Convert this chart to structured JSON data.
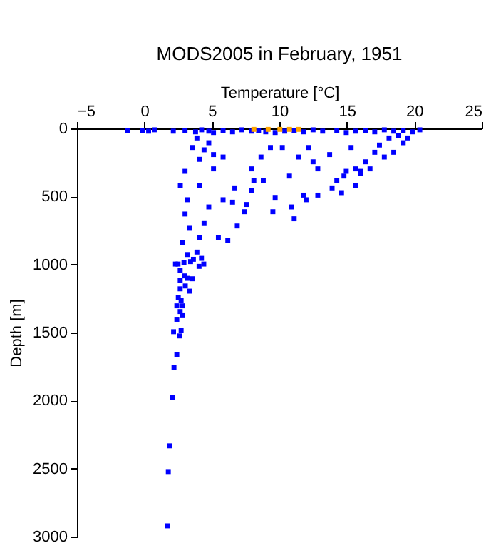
{
  "chart_data": {
    "type": "scatter",
    "title": "MODS2005 in February, 1951",
    "xlabel": "Temperature [°C]",
    "ylabel": "Depth [m]",
    "xlim": [
      -5,
      25
    ],
    "xticks": [
      -5,
      0,
      5,
      10,
      15,
      20,
      25
    ],
    "ylim": [
      3000,
      0
    ],
    "yticks": [
      0,
      500,
      1000,
      1500,
      2000,
      2500,
      3000
    ],
    "grid": false,
    "marker": "square",
    "series": [
      {
        "color": "#0000ff",
        "x": [
          -1.27,
          -0.15,
          0.31,
          0.73,
          2.14,
          3.01,
          3.79,
          4.24,
          4.77,
          5.12,
          5.83,
          6.53,
          7.23,
          7.94,
          8.46,
          8.99,
          9.69,
          10.4,
          11.1,
          11.8,
          12.5,
          13.21,
          14.26,
          14.96,
          15.67,
          16.37,
          17.07,
          17.78,
          18.48,
          19.18,
          19.89,
          20.41,
          3.89,
          4.77,
          4.42,
          5.12,
          3.54,
          5.83,
          4.07,
          3.01,
          2.66,
          3.19,
          3.01,
          3.37,
          2.84,
          3.19,
          2.49,
          4.07,
          5.12,
          4.77,
          4.42,
          4.07,
          3.89,
          5.83,
          5.48,
          6.88,
          6.7,
          6.53,
          6.18,
          7.94,
          8.11,
          7.94,
          7.58,
          7.41,
          8.81,
          8.64,
          9.34,
          10.22,
          10.75,
          9.69,
          9.52,
          10.92,
          11.1,
          11.45,
          12.15,
          12.5,
          12.85,
          11.8,
          11.98,
          12.85,
          13.91,
          14.26,
          14.79,
          14.96,
          15.67,
          16.02,
          16.37,
          17.07,
          17.42,
          18.13,
          18.83,
          13.73,
          15.32,
          16.02,
          14.61,
          15.67,
          17.78,
          18.48,
          19.18,
          19.53,
          16.72,
          2.3,
          2.93,
          3.63,
          4.23,
          4.05,
          4.4,
          3.42,
          2.65,
          3.0,
          3.17,
          2.65,
          3.56,
          3.03,
          2.65,
          3.35,
          2.51,
          2.72,
          2.4,
          2.82,
          2.65,
          2.82,
          2.4,
          2.16,
          2.72,
          2.61,
          2.4,
          2.19,
          2.09,
          1.88,
          1.77,
          1.7
        ],
        "values": [
          15,
          15,
          20,
          10,
          20,
          15,
          25,
          10,
          20,
          30,
          15,
          25,
          10,
          20,
          15,
          25,
          30,
          20,
          15,
          25,
          10,
          20,
          15,
          30,
          20,
          15,
          25,
          10,
          20,
          15,
          25,
          10,
          70,
          105,
          157,
          192,
          140,
          210,
          227,
          315,
          420,
          524,
          629,
          734,
          839,
          927,
          997,
          420,
          297,
          577,
          699,
          804,
          909,
          524,
          804,
          717,
          437,
          542,
          822,
          297,
          385,
          455,
          559,
          612,
          385,
          210,
          140,
          140,
          350,
          507,
          612,
          577,
          664,
          210,
          140,
          245,
          297,
          490,
          524,
          490,
          437,
          385,
          350,
          315,
          297,
          332,
          245,
          175,
          122,
          70,
          52,
          192,
          140,
          315,
          472,
          420,
          210,
          175,
          105,
          70,
          297,
          997,
          986,
          962,
          955,
          1014,
          997,
          979,
          1042,
          1084,
          1102,
          1119,
          1105,
          1158,
          1179,
          1196,
          1242,
          1266,
          1304,
          1304,
          1346,
          1371,
          1403,
          1494,
          1483,
          1525,
          1661,
          1756,
          1976,
          2333,
          2522,
          2921
        ]
      },
      {
        "color": "#ffa500",
        "x": [
          8.11,
          9.17,
          10.04,
          10.75,
          11.45
        ],
        "values": [
          7,
          7,
          7,
          7,
          7
        ]
      }
    ]
  }
}
